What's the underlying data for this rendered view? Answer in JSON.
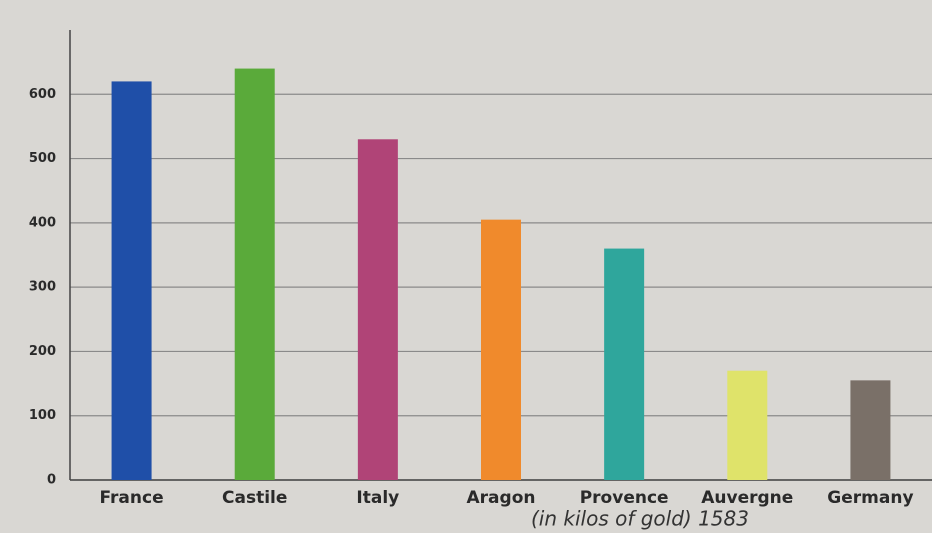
{
  "chart_data": {
    "type": "bar",
    "caption": "(in kilos of gold) 1583",
    "categories": [
      "France",
      "Castile",
      "Italy",
      "Aragon",
      "Provence",
      "Auvergne",
      "Germany"
    ],
    "values": [
      620,
      640,
      530,
      405,
      360,
      170,
      155
    ],
    "colors": [
      "#1f4fa8",
      "#5aaa3a",
      "#b04477",
      "#f08a2c",
      "#2fa69c",
      "#dfe36a",
      "#7a7068"
    ],
    "ylim": [
      0,
      700
    ],
    "yticks": [
      0,
      100,
      200,
      300,
      400,
      500,
      600
    ],
    "grid": true
  }
}
